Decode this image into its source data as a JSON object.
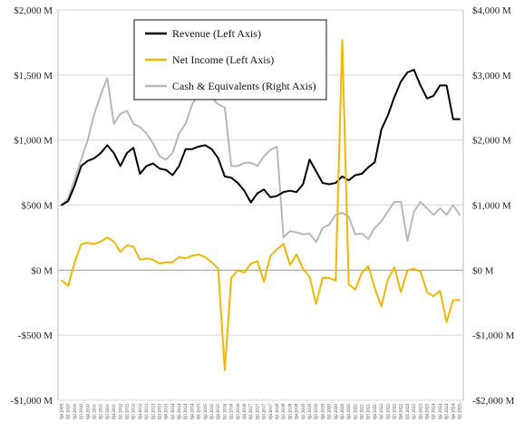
{
  "chart_data": {
    "type": "line",
    "title": "",
    "xlabel": "",
    "ylabel": "",
    "y_left": {
      "lim": [
        -1000,
        2000
      ],
      "ticks": [
        2000,
        1500,
        1000,
        500,
        0,
        -500,
        -1000
      ],
      "tick_labels": [
        "$2,000 M",
        "$1,500 M",
        "$1,000 M",
        "$500 M",
        "$0 M",
        "-$500 M",
        "-$1,000 M"
      ]
    },
    "y_right": {
      "lim": [
        -2000,
        4000
      ],
      "ticks": [
        4000,
        3000,
        2000,
        1000,
        0,
        -1000,
        -2000
      ],
      "tick_labels": [
        "$4,000 M",
        "$3,000 M",
        "$2,000 M",
        "$1,000 M",
        "$0 M",
        "-$1,000 M",
        "-$2,000 M"
      ]
    },
    "grid": "horizontal",
    "legend_position": "top-center",
    "categories": [
      "Q4 2009",
      "Q1 2010",
      "Q2 2010",
      "Q3 2010",
      "Q4 2010",
      "Q1 2011",
      "Q2 2011",
      "Q3 2011",
      "Q4 2011",
      "Q1 2012",
      "Q2 2012",
      "Q3 2012",
      "Q4 2012",
      "Q1 2013",
      "Q2 2013",
      "Q3 2013",
      "Q4 2013",
      "Q1 2014",
      "Q2 2014",
      "Q3 2014",
      "Q4 2014",
      "Q1 2015",
      "Q2 2015",
      "Q3 2015",
      "Q4 2015",
      "Q1 2016",
      "Q2 2016",
      "Q3 2016",
      "Q4 2016",
      "Q1 2017",
      "Q2 2017",
      "Q3 2017",
      "Q4 2017",
      "Q1 2018",
      "Q2 2018",
      "Q3 2018",
      "Q4 2018",
      "Q1 2019",
      "Q2 2019",
      "Q3 2019",
      "Q4 2019",
      "Q1 2020",
      "Q2 2020",
      "Q3 2020",
      "Q4 2020",
      "Q1 2021",
      "Q2 2021",
      "Q3 2021",
      "Q4 2021",
      "Q1 2022",
      "Q2 2022",
      "Q3 2022",
      "Q4 2022",
      "Q1 2023",
      "Q2 2023",
      "Q3 2023",
      "Q4 2023",
      "Q1 2024",
      "Q2 2024",
      "Q3 2024",
      "Q4 2024",
      "Q1 2025"
    ],
    "series": [
      {
        "name": "Revenue (Left Axis)",
        "axis": "left",
        "color": "#000000",
        "values": [
          500,
          530,
          650,
          800,
          840,
          860,
          900,
          960,
          900,
          800,
          900,
          940,
          740,
          800,
          820,
          780,
          770,
          730,
          800,
          930,
          930,
          950,
          960,
          930,
          860,
          720,
          710,
          670,
          610,
          520,
          590,
          620,
          560,
          570,
          600,
          610,
          600,
          660,
          850,
          760,
          670,
          660,
          670,
          720,
          690,
          730,
          740,
          790,
          830,
          1080,
          1190,
          1330,
          1450,
          1520,
          1540,
          1420,
          1320,
          1340,
          1420,
          1420,
          1160,
          1160
        ]
      },
      {
        "name": "Net Income (Left Axis)",
        "axis": "left",
        "color": "#f2b705",
        "values": [
          -80,
          -120,
          60,
          200,
          210,
          200,
          220,
          250,
          220,
          140,
          190,
          180,
          80,
          90,
          80,
          50,
          60,
          60,
          100,
          90,
          110,
          120,
          100,
          60,
          10,
          -770,
          -60,
          0,
          -20,
          50,
          70,
          -90,
          110,
          160,
          200,
          40,
          120,
          10,
          -50,
          -260,
          -60,
          -60,
          -80,
          1770,
          -110,
          -150,
          -20,
          30,
          -140,
          -280,
          -70,
          20,
          -170,
          0,
          10,
          -10,
          -170,
          -200,
          -160,
          -400,
          -230,
          -230
        ]
      },
      {
        "name": "Cash & Equivalents (Right Axis)",
        "axis": "right",
        "color": "#b8b8b8",
        "values": [
          1000,
          1100,
          1400,
          1700,
          2000,
          2400,
          2700,
          2950,
          2250,
          2400,
          2450,
          2250,
          2200,
          2100,
          1950,
          1750,
          1700,
          1800,
          2100,
          2250,
          2550,
          2700,
          2850,
          2650,
          2550,
          2500,
          1600,
          1600,
          1650,
          1650,
          1600,
          1750,
          1850,
          1900,
          500,
          600,
          580,
          550,
          560,
          430,
          650,
          700,
          850,
          880,
          820,
          550,
          560,
          480,
          650,
          750,
          900,
          1050,
          1050,
          450,
          900,
          1050,
          950,
          850,
          950,
          850,
          1000,
          850
        ]
      }
    ]
  }
}
